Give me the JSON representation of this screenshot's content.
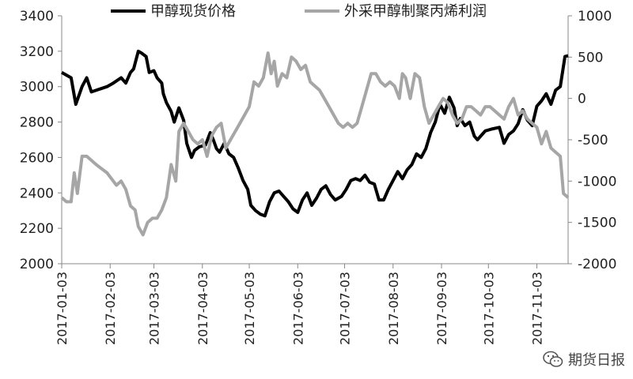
{
  "chart_data": {
    "type": "line",
    "title": "",
    "legend_placement": "top",
    "grid": false,
    "x_axis": {
      "type": "date",
      "range": [
        "2017-01-03",
        "2017-11-23"
      ],
      "tick_labels": [
        "2017-01-03",
        "2017-02-03",
        "2017-03-03",
        "2017-04-03",
        "2017-05-03",
        "2017-06-03",
        "2017-07-03",
        "2017-08-03",
        "2017-09-03",
        "2017-10-03",
        "2017-11-03"
      ]
    },
    "y_left": {
      "min": 2000,
      "max": 3400,
      "ticks": [
        2000,
        2200,
        2400,
        2600,
        2800,
        3000,
        3200,
        3400
      ]
    },
    "y_right": {
      "min": -2000,
      "max": 1000,
      "ticks": [
        -2000,
        -1500,
        -1000,
        -500,
        0,
        500,
        1000
      ]
    },
    "series": [
      {
        "name": "甲醇现货价格",
        "axis": "left",
        "color": "#000000",
        "points": [
          [
            "2017-01-03",
            3080
          ],
          [
            "2017-01-07",
            3060
          ],
          [
            "2017-01-09",
            3050
          ],
          [
            "2017-01-11",
            2950
          ],
          [
            "2017-01-12",
            2900
          ],
          [
            "2017-01-16",
            3000
          ],
          [
            "2017-01-19",
            3050
          ],
          [
            "2017-01-22",
            2970
          ],
          [
            "2017-02-01",
            3000
          ],
          [
            "2017-02-05",
            3020
          ],
          [
            "2017-02-10",
            3050
          ],
          [
            "2017-02-13",
            3020
          ],
          [
            "2017-02-16",
            3080
          ],
          [
            "2017-02-18",
            3100
          ],
          [
            "2017-02-21",
            3200
          ],
          [
            "2017-02-23",
            3190
          ],
          [
            "2017-02-26",
            3170
          ],
          [
            "2017-02-28",
            3080
          ],
          [
            "2017-03-03",
            3090
          ],
          [
            "2017-03-05",
            3050
          ],
          [
            "2017-03-08",
            3020
          ],
          [
            "2017-03-09",
            2960
          ],
          [
            "2017-03-11",
            2910
          ],
          [
            "2017-03-14",
            2860
          ],
          [
            "2017-03-16",
            2800
          ],
          [
            "2017-03-19",
            2880
          ],
          [
            "2017-03-22",
            2810
          ],
          [
            "2017-03-24",
            2680
          ],
          [
            "2017-03-27",
            2600
          ],
          [
            "2017-03-29",
            2640
          ],
          [
            "2017-04-01",
            2660
          ],
          [
            "2017-04-05",
            2670
          ],
          [
            "2017-04-08",
            2740
          ],
          [
            "2017-04-10",
            2700
          ],
          [
            "2017-04-12",
            2650
          ],
          [
            "2017-04-14",
            2630
          ],
          [
            "2017-04-17",
            2680
          ],
          [
            "2017-04-20",
            2620
          ],
          [
            "2017-04-23",
            2600
          ],
          [
            "2017-04-26",
            2540
          ],
          [
            "2017-04-29",
            2470
          ],
          [
            "2017-05-02",
            2420
          ],
          [
            "2017-05-04",
            2330
          ],
          [
            "2017-05-07",
            2300
          ],
          [
            "2017-05-10",
            2280
          ],
          [
            "2017-05-13",
            2270
          ],
          [
            "2017-05-16",
            2350
          ],
          [
            "2017-05-19",
            2400
          ],
          [
            "2017-05-22",
            2410
          ],
          [
            "2017-05-25",
            2380
          ],
          [
            "2017-05-28",
            2350
          ],
          [
            "2017-05-31",
            2310
          ],
          [
            "2017-06-03",
            2290
          ],
          [
            "2017-06-06",
            2360
          ],
          [
            "2017-06-09",
            2400
          ],
          [
            "2017-06-12",
            2330
          ],
          [
            "2017-06-15",
            2370
          ],
          [
            "2017-06-18",
            2420
          ],
          [
            "2017-06-21",
            2440
          ],
          [
            "2017-06-24",
            2390
          ],
          [
            "2017-06-27",
            2360
          ],
          [
            "2017-07-01",
            2380
          ],
          [
            "2017-07-04",
            2420
          ],
          [
            "2017-07-07",
            2470
          ],
          [
            "2017-07-10",
            2480
          ],
          [
            "2017-07-13",
            2470
          ],
          [
            "2017-07-16",
            2500
          ],
          [
            "2017-07-19",
            2460
          ],
          [
            "2017-07-22",
            2450
          ],
          [
            "2017-07-25",
            2360
          ],
          [
            "2017-07-28",
            2360
          ],
          [
            "2017-07-31",
            2420
          ],
          [
            "2017-08-03",
            2470
          ],
          [
            "2017-08-06",
            2520
          ],
          [
            "2017-08-09",
            2480
          ],
          [
            "2017-08-12",
            2530
          ],
          [
            "2017-08-15",
            2560
          ],
          [
            "2017-08-18",
            2620
          ],
          [
            "2017-08-21",
            2600
          ],
          [
            "2017-08-24",
            2650
          ],
          [
            "2017-08-27",
            2740
          ],
          [
            "2017-08-30",
            2800
          ],
          [
            "2017-09-02",
            2900
          ],
          [
            "2017-09-05",
            2850
          ],
          [
            "2017-09-08",
            2940
          ],
          [
            "2017-09-11",
            2880
          ],
          [
            "2017-09-13",
            2780
          ],
          [
            "2017-09-15",
            2820
          ],
          [
            "2017-09-18",
            2780
          ],
          [
            "2017-09-21",
            2800
          ],
          [
            "2017-09-24",
            2720
          ],
          [
            "2017-09-26",
            2700
          ],
          [
            "2017-10-01",
            2750
          ],
          [
            "2017-10-05",
            2760
          ],
          [
            "2017-10-10",
            2770
          ],
          [
            "2017-10-13",
            2680
          ],
          [
            "2017-10-16",
            2730
          ],
          [
            "2017-10-19",
            2750
          ],
          [
            "2017-10-22",
            2790
          ],
          [
            "2017-10-25",
            2870
          ],
          [
            "2017-10-28",
            2810
          ],
          [
            "2017-10-31",
            2780
          ],
          [
            "2017-11-03",
            2890
          ],
          [
            "2017-11-06",
            2920
          ],
          [
            "2017-11-09",
            2960
          ],
          [
            "2017-11-12",
            2900
          ],
          [
            "2017-11-15",
            2980
          ],
          [
            "2017-11-18",
            3000
          ],
          [
            "2017-11-21",
            3170
          ],
          [
            "2017-11-23",
            3175
          ]
        ]
      },
      {
        "name": "外采甲醇制聚丙烯利润",
        "axis": "right",
        "color": "#A6A6A6",
        "points": [
          [
            "2017-01-03",
            -1200
          ],
          [
            "2017-01-06",
            -1250
          ],
          [
            "2017-01-09",
            -1250
          ],
          [
            "2017-01-11",
            -900
          ],
          [
            "2017-01-13",
            -1150
          ],
          [
            "2017-01-16",
            -700
          ],
          [
            "2017-01-19",
            -700
          ],
          [
            "2017-01-25",
            -800
          ],
          [
            "2017-02-01",
            -900
          ],
          [
            "2017-02-07",
            -1050
          ],
          [
            "2017-02-10",
            -1000
          ],
          [
            "2017-02-13",
            -1100
          ],
          [
            "2017-02-16",
            -1300
          ],
          [
            "2017-02-19",
            -1350
          ],
          [
            "2017-02-21",
            -1550
          ],
          [
            "2017-02-24",
            -1650
          ],
          [
            "2017-02-27",
            -1500
          ],
          [
            "2017-03-02",
            -1450
          ],
          [
            "2017-03-05",
            -1450
          ],
          [
            "2017-03-08",
            -1350
          ],
          [
            "2017-03-11",
            -1200
          ],
          [
            "2017-03-14",
            -800
          ],
          [
            "2017-03-17",
            -1000
          ],
          [
            "2017-03-19",
            -400
          ],
          [
            "2017-03-22",
            -300
          ],
          [
            "2017-03-25",
            -400
          ],
          [
            "2017-03-28",
            -500
          ],
          [
            "2017-03-31",
            -550
          ],
          [
            "2017-04-03",
            -500
          ],
          [
            "2017-04-06",
            -700
          ],
          [
            "2017-04-09",
            -450
          ],
          [
            "2017-04-12",
            -350
          ],
          [
            "2017-04-15",
            -300
          ],
          [
            "2017-04-18",
            -600
          ],
          [
            "2017-04-21",
            -500
          ],
          [
            "2017-04-24",
            -400
          ],
          [
            "2017-04-27",
            -300
          ],
          [
            "2017-04-30",
            -200
          ],
          [
            "2017-05-03",
            -100
          ],
          [
            "2017-05-06",
            200
          ],
          [
            "2017-05-09",
            150
          ],
          [
            "2017-05-12",
            250
          ],
          [
            "2017-05-15",
            550
          ],
          [
            "2017-05-17",
            300
          ],
          [
            "2017-05-19",
            450
          ],
          [
            "2017-05-21",
            150
          ],
          [
            "2017-05-24",
            300
          ],
          [
            "2017-05-27",
            250
          ],
          [
            "2017-05-30",
            500
          ],
          [
            "2017-06-02",
            450
          ],
          [
            "2017-06-05",
            350
          ],
          [
            "2017-06-08",
            400
          ],
          [
            "2017-06-11",
            200
          ],
          [
            "2017-06-14",
            150
          ],
          [
            "2017-06-17",
            100
          ],
          [
            "2017-06-20",
            0
          ],
          [
            "2017-06-23",
            -100
          ],
          [
            "2017-06-26",
            -200
          ],
          [
            "2017-06-29",
            -300
          ],
          [
            "2017-07-02",
            -350
          ],
          [
            "2017-07-05",
            -300
          ],
          [
            "2017-07-08",
            -350
          ],
          [
            "2017-07-11",
            -300
          ],
          [
            "2017-07-14",
            -100
          ],
          [
            "2017-07-17",
            100
          ],
          [
            "2017-07-20",
            300
          ],
          [
            "2017-07-23",
            300
          ],
          [
            "2017-07-26",
            200
          ],
          [
            "2017-07-29",
            150
          ],
          [
            "2017-08-01",
            200
          ],
          [
            "2017-08-04",
            150
          ],
          [
            "2017-08-07",
            0
          ],
          [
            "2017-08-09",
            300
          ],
          [
            "2017-08-11",
            250
          ],
          [
            "2017-08-14",
            0
          ],
          [
            "2017-08-17",
            300
          ],
          [
            "2017-08-20",
            250
          ],
          [
            "2017-08-23",
            -100
          ],
          [
            "2017-08-26",
            -300
          ],
          [
            "2017-08-29",
            -200
          ],
          [
            "2017-09-01",
            -100
          ],
          [
            "2017-09-04",
            0
          ],
          [
            "2017-09-07",
            -50
          ],
          [
            "2017-09-10",
            -200
          ],
          [
            "2017-09-13",
            -300
          ],
          [
            "2017-09-16",
            -250
          ],
          [
            "2017-09-19",
            -100
          ],
          [
            "2017-09-22",
            -100
          ],
          [
            "2017-09-25",
            -150
          ],
          [
            "2017-09-28",
            -200
          ],
          [
            "2017-10-01",
            -100
          ],
          [
            "2017-10-04",
            -100
          ],
          [
            "2017-10-07",
            -150
          ],
          [
            "2017-10-10",
            -200
          ],
          [
            "2017-10-13",
            -250
          ],
          [
            "2017-10-16",
            -100
          ],
          [
            "2017-10-19",
            0
          ],
          [
            "2017-10-22",
            -200
          ],
          [
            "2017-10-25",
            -150
          ],
          [
            "2017-10-28",
            -250
          ],
          [
            "2017-10-31",
            -300
          ],
          [
            "2017-11-03",
            -350
          ],
          [
            "2017-11-06",
            -550
          ],
          [
            "2017-11-09",
            -400
          ],
          [
            "2017-11-12",
            -600
          ],
          [
            "2017-11-15",
            -650
          ],
          [
            "2017-11-18",
            -700
          ],
          [
            "2017-11-20",
            -1150
          ],
          [
            "2017-11-23",
            -1200
          ]
        ]
      }
    ]
  },
  "watermark": {
    "text": "期货日报",
    "icon": "wechat-icon"
  }
}
